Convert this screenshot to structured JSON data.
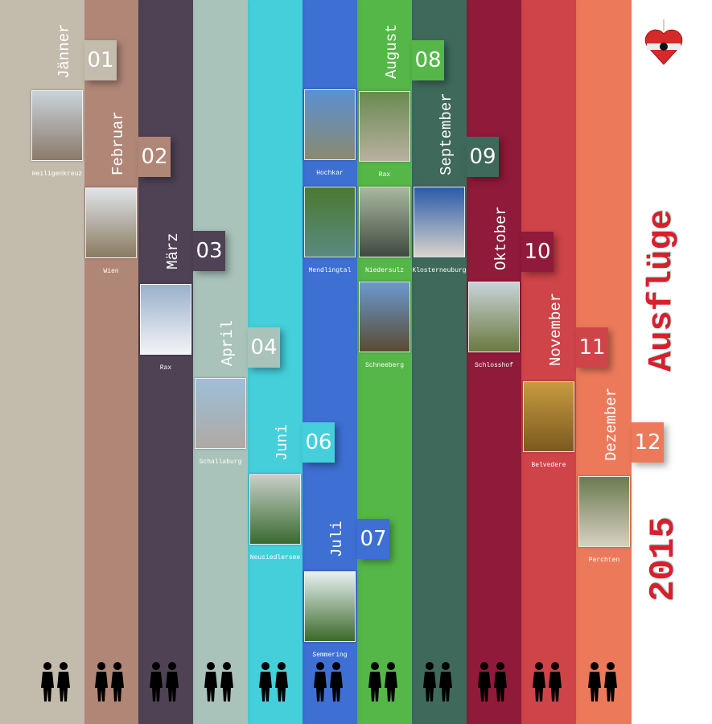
{
  "title": "Ausflüge",
  "year": "2015",
  "emblem_icon": "austria-heart-ornament-icon",
  "months": [
    {
      "name": "Jänner",
      "number": "01",
      "color": "#c3bbab",
      "trips": [
        {
          "caption": "Heiligenkreuz",
          "tone": [
            "#c9d3dc",
            "#8a7a68"
          ]
        }
      ],
      "figure": "walking-couple-icon"
    },
    {
      "name": "Februar",
      "number": "02",
      "color": "#b08677",
      "trips": [
        {
          "caption": "Wien",
          "tone": [
            "#e0e4e8",
            "#8a7a60"
          ]
        }
      ],
      "figure": "ice-skater-icon"
    },
    {
      "name": "März",
      "number": "03",
      "color": "#4e4254",
      "trips": [
        {
          "caption": "Rax",
          "tone": [
            "#9ab0cc",
            "#f2f4f6"
          ]
        }
      ],
      "figure": "snowshoe-hikers-icon"
    },
    {
      "name": "April",
      "number": "04",
      "color": "#a9c3bb",
      "trips": [
        {
          "caption": "Schallaburg",
          "tone": [
            "#9cc0d8",
            "#b0a8a4"
          ]
        }
      ],
      "figure": "couple-holding-hands-icon"
    },
    {
      "name": "Juni",
      "number": "06",
      "color": "#44cfdb",
      "trips": [
        {
          "caption": "Neusiedlersee",
          "tone": [
            "#c8d0c8",
            "#3a6a30"
          ]
        }
      ],
      "figure": "cyclists-icon"
    },
    {
      "name": "Juli",
      "number": "07",
      "color": "#3e6fd3",
      "trips": [
        {
          "caption": "Hochkar",
          "tone": [
            "#5a90d0",
            "#8a8a70"
          ]
        },
        {
          "caption": "Mendlingtal",
          "tone": [
            "#4a7a30",
            "#5a8a80"
          ]
        },
        {
          "caption": "Semmering",
          "tone": [
            "#e8f0f4",
            "#3a6a28"
          ]
        }
      ],
      "figure": "photographer-hikers-icon"
    },
    {
      "name": "August",
      "number": "08",
      "color": "#55b748",
      "trips": [
        {
          "caption": "Rax",
          "tone": [
            "#6a8a50",
            "#b8b0a0"
          ]
        },
        {
          "caption": "Niedersulz",
          "tone": [
            "#a8b8a0",
            "#404a40"
          ]
        },
        {
          "caption": "Schneeberg",
          "tone": [
            "#6a9ad0",
            "#5a4a30"
          ]
        }
      ],
      "figure": "nordic-walker-icon"
    },
    {
      "name": "September",
      "number": "09",
      "color": "#3f695b",
      "trips": [
        {
          "caption": "Klosterneuburg",
          "tone": [
            "#2a5aa8",
            "#d8d4cc"
          ]
        }
      ],
      "figure": "pointing-couple-icon"
    },
    {
      "name": "Oktober",
      "number": "10",
      "color": "#8f1a39",
      "trips": [
        {
          "caption": "Schlosshof",
          "tone": [
            "#c8d4d8",
            "#6a7a40"
          ]
        }
      ],
      "figure": "couple-walking-icon"
    },
    {
      "name": "November",
      "number": "11",
      "color": "#cf4449",
      "trips": [
        {
          "caption": "Belvedere",
          "tone": [
            "#c89a40",
            "#7a5a20"
          ]
        }
      ],
      "figure": "woman-camera-icon"
    },
    {
      "name": "Dezember",
      "number": "12",
      "color": "#ec7a5a",
      "trips": [
        {
          "caption": "Perchten",
          "tone": [
            "#6a7a50",
            "#d8d0c0"
          ]
        }
      ],
      "figure": "dancing-photographer-icon"
    }
  ]
}
